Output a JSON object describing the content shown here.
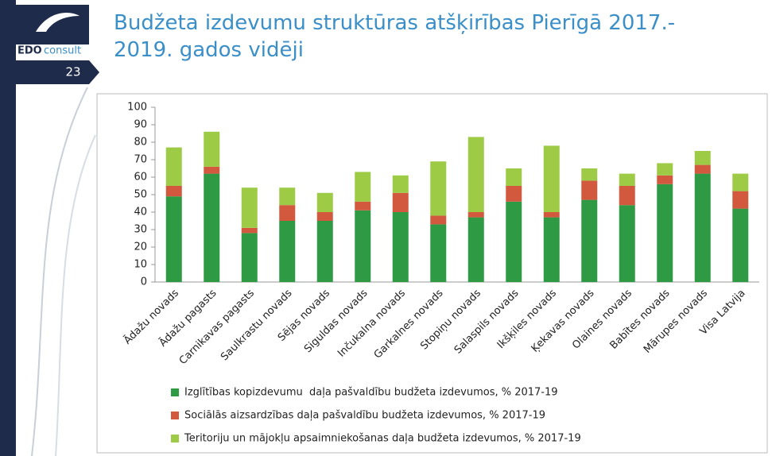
{
  "slide": {
    "logo_brand": "EDO",
    "logo_word": "consult",
    "number": "23"
  },
  "chart_data": {
    "type": "stacked_bar",
    "title": "Budžeta izdevumu struktūras atšķirības Pierīgā 2017.- 2019. gados vidēji",
    "categories": [
      "Ādažu novads",
      "Ādažu pagasts",
      "Carnikavas pagasts",
      "Saulkrastu novads",
      "Sējas novads",
      "Siguldas novads",
      "Inčukalna novads",
      "Garkalnes novads",
      "Stopiņu novads",
      "Salaspils novads",
      "Ikšķiles novads",
      "Ķekavas novads",
      "Olaines novads",
      "Babītes novads",
      "Mārupes novads",
      "Visa Latvija"
    ],
    "series": [
      {
        "name": "Izglītības kopizdevumu  daļa pašvaldību budžeta izdevumos, % 2017-19",
        "color": "#2e9a44",
        "values": [
          49,
          62,
          28,
          35,
          35,
          41,
          40,
          33,
          37,
          46,
          37,
          47,
          44,
          56,
          62,
          42
        ]
      },
      {
        "name": "Sociālās aizsardzības daļa pašvaldību budžeta izdevumos, % 2017-19",
        "color": "#d2583e",
        "values": [
          6,
          4,
          3,
          9,
          5,
          5,
          11,
          5,
          3,
          9,
          3,
          11,
          11,
          5,
          5,
          10
        ]
      },
      {
        "name": "Teritoriju un mājokļu apsaimniekošanas daļa budžeta izdevumos, % 2017-19",
        "color": "#9dcb45",
        "values": [
          22,
          20,
          23,
          10,
          11,
          17,
          10,
          31,
          43,
          10,
          38,
          7,
          7,
          7,
          8,
          10
        ]
      }
    ],
    "ylim": [
      0,
      100
    ],
    "yticks": [
      0,
      10,
      20,
      30,
      40,
      50,
      60,
      70,
      80,
      90,
      100
    ],
    "grid": false
  }
}
